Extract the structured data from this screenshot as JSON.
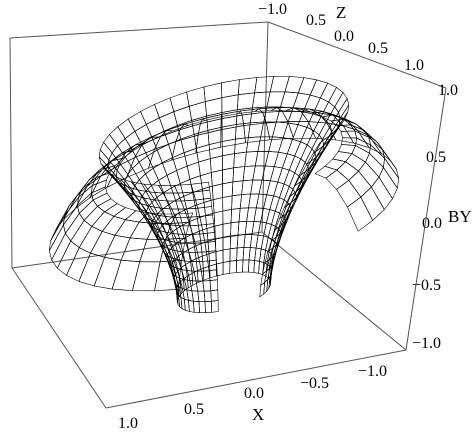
{
  "chart_data": {
    "type": "surface3d",
    "title": "",
    "axes": {
      "x": {
        "label": "X",
        "range": [
          -1.0,
          1.0
        ],
        "ticks": [
          "1.0",
          "0.5",
          "0.0",
          "−0.5",
          "−1.0"
        ]
      },
      "y": {
        "label": "BY",
        "range": [
          -1.0,
          1.0
        ],
        "ticks": [
          "1.0",
          "0.5",
          "0.0",
          "−0.5",
          "−1.0"
        ]
      },
      "z": {
        "label": "Z",
        "range": [
          -1.0,
          1.0
        ],
        "ticks": [
          "−1.0",
          "0.5",
          "0.0",
          "0.5",
          "1.0"
        ]
      }
    },
    "surface": {
      "shape": "funnel-shaped polar surface with a rippled (jagged) upper rim, a cut-away wedge opening toward the front, and a downward-curving brim",
      "rim_radius": 0.75,
      "throat_radius": 0.28,
      "brim_radius": 1.05,
      "z_top": 0.78,
      "z_bottom": -0.92,
      "colormap": [
        "#ffcc00",
        "#66ff00",
        "#00ffcc",
        "#0066ff",
        "#6600ff",
        "#ff00ff",
        "#ff2080"
      ]
    },
    "box": true,
    "grid": false,
    "legend": false
  }
}
